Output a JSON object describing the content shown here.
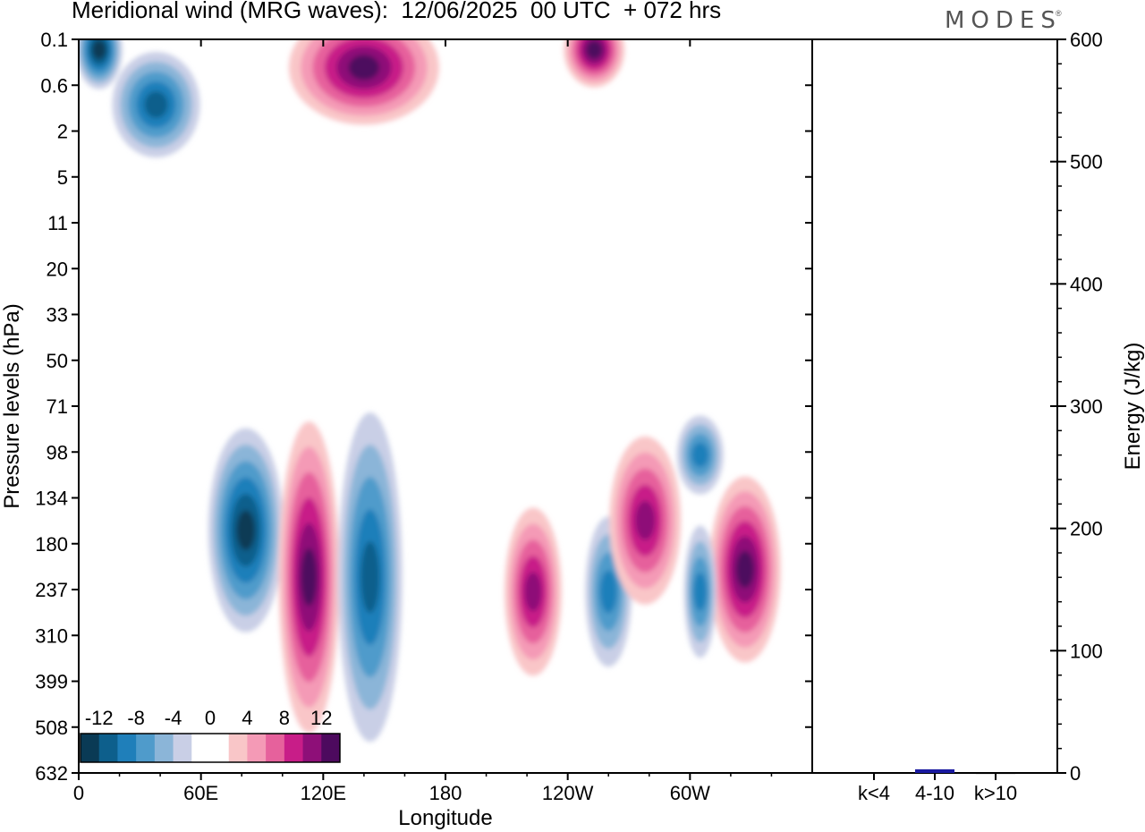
{
  "header": {
    "title": "Meridional wind (MRG waves):  12/06/2025  00 UTC  + 072 hrs",
    "logo": "MODES",
    "logo_mark": "®"
  },
  "chart_data": [
    {
      "type": "heatmap",
      "title": "Meridional wind (MRG waves):  12/06/2025  00 UTC  + 072 hrs",
      "xlabel": "Longitude",
      "ylabel": "Pressure levels (hPa)",
      "x_ticks": [
        "0",
        "60E",
        "120E",
        "180",
        "120W",
        "60W"
      ],
      "x_tick_values": [
        0,
        60,
        120,
        180,
        240,
        300
      ],
      "xlim": [
        0,
        360
      ],
      "y_ticks": [
        "0.1",
        "0.6",
        "2",
        "5",
        "11",
        "20",
        "33",
        "50",
        "71",
        "98",
        "134",
        "180",
        "237",
        "310",
        "399",
        "508",
        "632"
      ],
      "colorbar": {
        "labels": [
          "-12",
          "-8",
          "-4",
          "0",
          "4",
          "8",
          "12"
        ],
        "levels": [
          -14,
          -12,
          -10,
          -8,
          -6,
          -4,
          -2,
          0,
          2,
          4,
          6,
          8,
          10,
          12,
          14
        ],
        "colors": [
          "#0a3a55",
          "#0d5f8c",
          "#1f7fba",
          "#4f9bcb",
          "#8bb5d8",
          "#c9cfe6",
          "#ffffff",
          "#ffffff",
          "#f9c6c8",
          "#f49ab6",
          "#e6619c",
          "#c81d88",
          "#8e0f78",
          "#4d0a5e"
        ]
      },
      "features": [
        {
          "sign": "negative",
          "level": -12,
          "lon": 10,
          "level_hPa": 0.15
        },
        {
          "sign": "positive",
          "level": 12,
          "lon": 140,
          "level_hPa": 0.3
        },
        {
          "sign": "negative",
          "level": -10,
          "lon": 38,
          "level_hPa": 1.0
        },
        {
          "sign": "positive",
          "level": 12,
          "lon": 253,
          "level_hPa": 0.15
        },
        {
          "sign": "negative",
          "level": -12,
          "lon": 82,
          "level_hPa": 165
        },
        {
          "sign": "positive",
          "level": 12,
          "lon": 113,
          "level_hPa": 220
        },
        {
          "sign": "negative",
          "level": -10,
          "lon": 143,
          "level_hPa": 220
        },
        {
          "sign": "positive",
          "level": 10,
          "lon": 223,
          "level_hPa": 240
        },
        {
          "sign": "negative",
          "level": -8,
          "lon": 260,
          "level_hPa": 240
        },
        {
          "sign": "positive",
          "level": 10,
          "lon": 278,
          "level_hPa": 155
        },
        {
          "sign": "negative",
          "level": -8,
          "lon": 305,
          "level_hPa": 100
        },
        {
          "sign": "positive",
          "level": 12,
          "lon": 327,
          "level_hPa": 210
        },
        {
          "sign": "negative",
          "level": -8,
          "lon": 305,
          "level_hPa": 240
        }
      ]
    },
    {
      "type": "bar",
      "ylabel": "Energy (J/kg)",
      "categories": [
        "k<4",
        "4-10",
        "k>10"
      ],
      "values": [
        0.5,
        3,
        0.3
      ],
      "colors": [
        "#000000",
        "#1a1aa0",
        "#000000"
      ],
      "ylim": [
        0,
        600
      ],
      "y_ticks": [
        "0",
        "100",
        "200",
        "300",
        "400",
        "500",
        "600"
      ]
    }
  ]
}
